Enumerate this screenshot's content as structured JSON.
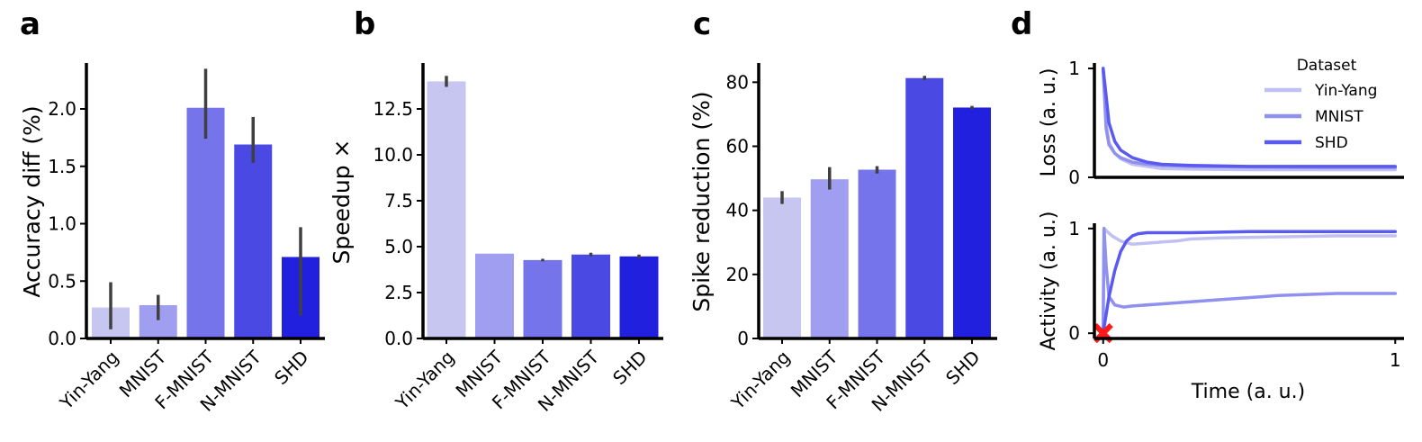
{
  "panels": [
    {
      "letter": "a",
      "ylabel": "Accuracy diff (%)"
    },
    {
      "letter": "b",
      "ylabel": "Speedup ×"
    },
    {
      "letter": "c",
      "ylabel": "Spike reduction (%)"
    },
    {
      "letter": "d",
      "ylabel_top": "Loss (a. u.)",
      "ylabel_bottom": "Activity (a. u.)",
      "xlabel": "Time (a. u.)"
    }
  ],
  "chart_data": [
    {
      "type": "bar",
      "categories": [
        "Yin-Yang",
        "MNIST",
        "F-MNIST",
        "N-MNIST",
        "SHD"
      ],
      "values": [
        0.27,
        0.29,
        2.01,
        1.69,
        0.71
      ],
      "errors_low": [
        0.08,
        0.16,
        1.74,
        1.53,
        0.2
      ],
      "errors_high": [
        0.49,
        0.38,
        2.35,
        1.93,
        0.97
      ],
      "ylabel": "Accuracy diff (%)",
      "ylim": [
        0,
        2.4
      ],
      "yticks": [
        "0.0",
        "0.5",
        "1.0",
        "1.5",
        "2.0"
      ],
      "colors": [
        "#c6c6f0",
        "#a09ef0",
        "#7674ea",
        "#4a49e4",
        "#2020de"
      ]
    },
    {
      "type": "bar",
      "categories": [
        "Yin-Yang",
        "MNIST",
        "F-MNIST",
        "N-MNIST",
        "SHD"
      ],
      "values": [
        14.0,
        4.62,
        4.27,
        4.57,
        4.47
      ],
      "errors_low": [
        13.7,
        4.62,
        4.2,
        4.47,
        4.37
      ],
      "errors_high": [
        14.3,
        4.62,
        4.34,
        4.67,
        4.57
      ],
      "ylabel": "Speedup ×",
      "ylim": [
        0,
        15
      ],
      "yticks": [
        "0.0",
        "2.5",
        "5.0",
        "7.5",
        "10.0",
        "12.5"
      ],
      "colors": [
        "#c6c6f0",
        "#a09ef0",
        "#7674ea",
        "#4a49e4",
        "#2020de"
      ]
    },
    {
      "type": "bar",
      "categories": [
        "Yin-Yang",
        "MNIST",
        "F-MNIST",
        "N-MNIST",
        "SHD"
      ],
      "values": [
        44.0,
        49.7,
        52.7,
        81.3,
        72.1
      ],
      "errors_low": [
        42.0,
        46.5,
        51.5,
        80.7,
        71.6
      ],
      "errors_high": [
        46.0,
        53.5,
        53.8,
        82.0,
        72.6
      ],
      "ylabel": "Spike reduction (%)",
      "ylim": [
        0,
        86
      ],
      "yticks": [
        "0",
        "20",
        "40",
        "60",
        "80"
      ],
      "colors": [
        "#c6c6f0",
        "#a09ef0",
        "#7674ea",
        "#4a49e4",
        "#2020de"
      ]
    },
    {
      "type": "line",
      "ylabel": "Loss (a. u.)",
      "xlabel": "",
      "xlim": [
        -0.03,
        1.03
      ],
      "ylim": [
        0,
        1.05
      ],
      "yticks": [
        "0",
        "1"
      ],
      "legend": {
        "title": "Dataset",
        "placement": "top-right"
      },
      "series": [
        {
          "name": "Yin-Yang",
          "color": "#c0c0f2",
          "x": [
            0,
            0.01,
            0.02,
            0.04,
            0.06,
            0.1,
            0.15,
            0.2,
            0.3,
            0.5,
            0.75,
            1.0
          ],
          "y": [
            1.0,
            0.5,
            0.32,
            0.22,
            0.17,
            0.12,
            0.1,
            0.08,
            0.075,
            0.07,
            0.07,
            0.07
          ]
        },
        {
          "name": "MNIST",
          "color": "#9090ee",
          "x": [
            0,
            0.01,
            0.02,
            0.04,
            0.06,
            0.1,
            0.15,
            0.2,
            0.3,
            0.5,
            0.75,
            1.0
          ],
          "y": [
            1.0,
            0.45,
            0.3,
            0.22,
            0.18,
            0.14,
            0.12,
            0.11,
            0.1,
            0.095,
            0.09,
            0.09
          ]
        },
        {
          "name": "SHD",
          "color": "#5a5af0",
          "x": [
            0,
            0.01,
            0.02,
            0.04,
            0.06,
            0.1,
            0.15,
            0.2,
            0.3,
            0.5,
            0.75,
            1.0
          ],
          "y": [
            1.0,
            0.75,
            0.5,
            0.33,
            0.25,
            0.18,
            0.14,
            0.12,
            0.11,
            0.1,
            0.1,
            0.1
          ]
        }
      ]
    },
    {
      "type": "line",
      "ylabel": "Activity (a. u.)",
      "xlabel": "Time (a. u.)",
      "xlim": [
        -0.03,
        1.03
      ],
      "ylim": [
        -0.05,
        1.05
      ],
      "xticks": [
        "0",
        "1"
      ],
      "yticks": [
        "0",
        "1"
      ],
      "marker": {
        "x": 0,
        "y": 0,
        "shape": "x",
        "color": "#ff1a1a"
      },
      "series": [
        {
          "name": "Yin-Yang",
          "color": "#c0c0f2",
          "x": [
            0,
            0.003,
            0.01,
            0.03,
            0.06,
            0.1,
            0.15,
            0.2,
            0.25,
            0.3,
            0.4,
            0.6,
            0.8,
            1.0
          ],
          "y": [
            0,
            1.0,
            0.98,
            0.93,
            0.88,
            0.85,
            0.86,
            0.87,
            0.88,
            0.9,
            0.91,
            0.92,
            0.93,
            0.93
          ]
        },
        {
          "name": "MNIST",
          "color": "#9090ee",
          "x": [
            0,
            0.003,
            0.01,
            0.02,
            0.04,
            0.07,
            0.1,
            0.2,
            0.3,
            0.4,
            0.5,
            0.6,
            0.7,
            0.8,
            0.9,
            1.0
          ],
          "y": [
            0,
            1.0,
            0.65,
            0.35,
            0.27,
            0.25,
            0.26,
            0.28,
            0.3,
            0.32,
            0.34,
            0.36,
            0.37,
            0.38,
            0.38,
            0.38
          ]
        },
        {
          "name": "SHD",
          "color": "#5a5af0",
          "x": [
            0,
            0.02,
            0.04,
            0.06,
            0.08,
            0.1,
            0.12,
            0.15,
            0.2,
            0.3,
            0.5,
            0.75,
            1.0
          ],
          "y": [
            0,
            0.35,
            0.6,
            0.78,
            0.88,
            0.93,
            0.95,
            0.96,
            0.96,
            0.96,
            0.97,
            0.97,
            0.97
          ]
        }
      ]
    }
  ]
}
